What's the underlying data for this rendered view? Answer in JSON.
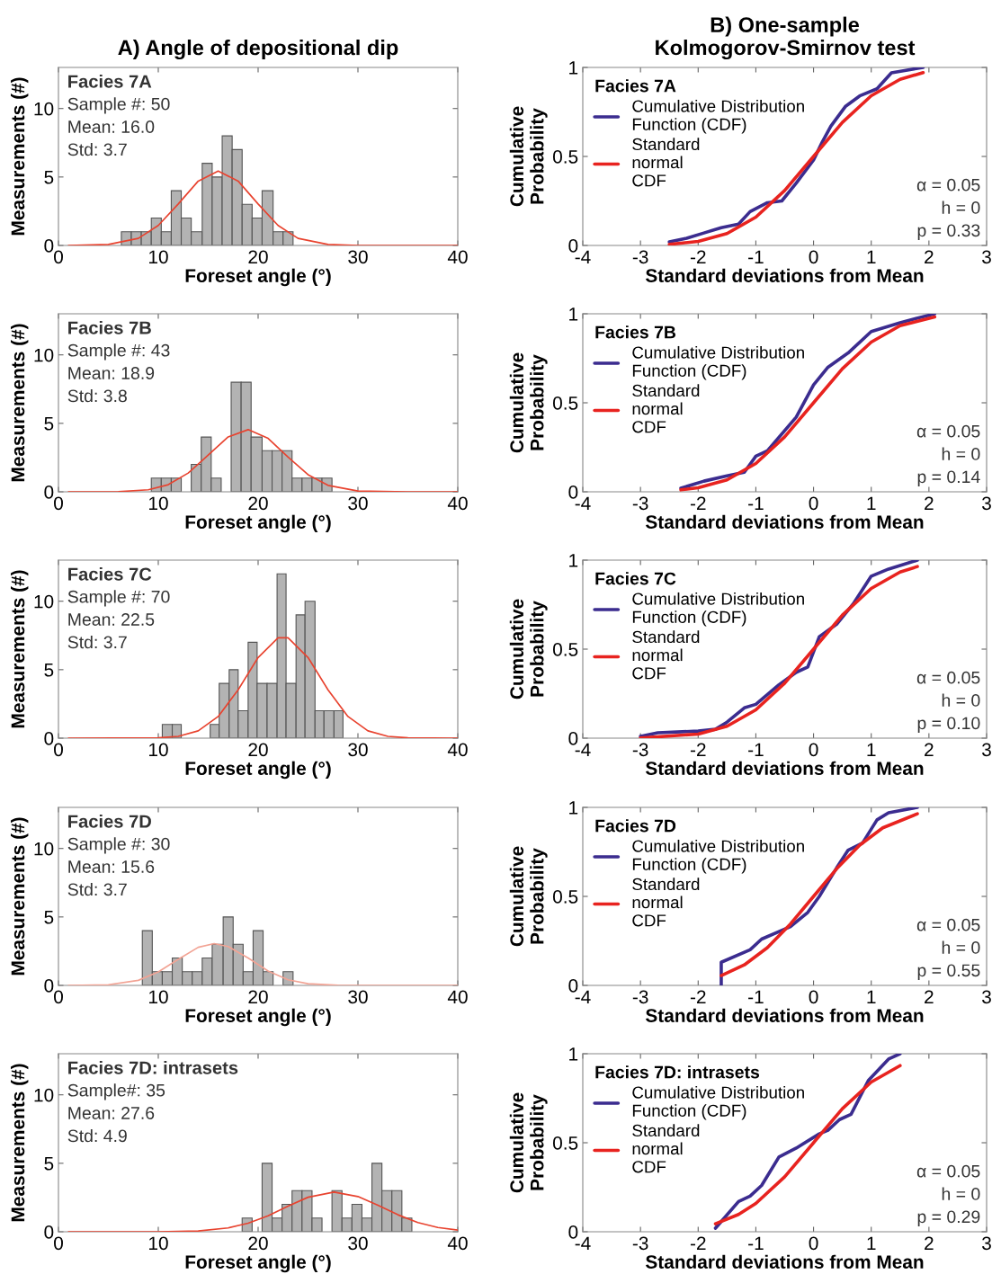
{
  "chart_data": [
    {
      "type": "histogram",
      "title": "A) Angle of depositional dip",
      "xlabel": "Foreset angle (°)",
      "ylabel": "Measurements (#)",
      "bins": [
        6.3,
        7.3,
        8.3,
        9.3,
        10.3,
        11.3,
        12.3,
        13.3,
        14.4,
        15.4,
        16.4,
        17.4,
        18.4,
        19.4,
        20.4,
        21.5,
        22.5,
        23.5
      ],
      "values": [
        1,
        1,
        1,
        2,
        1,
        4,
        2,
        1,
        6,
        5,
        8,
        7,
        3,
        2,
        4,
        1,
        1
      ],
      "color": "#b3b3b3",
      "series": [
        {
          "type": "line",
          "color": "#e8432f",
          "x": [
            1,
            5,
            8,
            10,
            12,
            14,
            16,
            18,
            20,
            22,
            24,
            27,
            30,
            35,
            40
          ],
          "values": [
            0,
            0.07,
            0.52,
            1.46,
            3.03,
            4.7,
            5.44,
            4.7,
            3.03,
            1.46,
            0.52,
            0.07,
            0,
            0,
            0
          ]
        }
      ],
      "xlim": [
        0,
        40
      ],
      "xticks": [
        0,
        10,
        20,
        30,
        40
      ],
      "ylim": [
        0,
        13
      ],
      "yticks": [
        0,
        5,
        10
      ],
      "grid": false,
      "annotations": [
        "Facies 7A",
        "Sample #: 50",
        "Mean: 16.0",
        "Std: 3.7"
      ]
    },
    {
      "type": "line",
      "title": "B) One-sample\nKolmogorov-Smirnov test",
      "xlabel": "Standard deviations from Mean",
      "ylabel": "Cumulative\nProbability",
      "legend_title": "Facies 7A",
      "legend": "top left",
      "series": [
        {
          "name": "Cumulative Distribution\nFunction (CDF)",
          "color": "#3b2c8f",
          "x": [
            -2.5,
            -2.2,
            -1.9,
            -1.6,
            -1.3,
            -1.1,
            -0.8,
            -0.55,
            -0.3,
            0,
            0.15,
            0.3,
            0.55,
            0.8,
            1.1,
            1.35,
            1.9
          ],
          "values": [
            0.02,
            0.04,
            0.07,
            0.1,
            0.12,
            0.19,
            0.24,
            0.25,
            0.35,
            0.48,
            0.58,
            0.67,
            0.78,
            0.84,
            0.88,
            0.97,
            1.0
          ]
        },
        {
          "name": "Standard\nnormal\nCDF",
          "color": "#e8231f",
          "x": [
            -2.5,
            -2,
            -1.5,
            -1,
            -0.5,
            0,
            0.5,
            1,
            1.5,
            1.9
          ],
          "values": [
            0.006,
            0.023,
            0.067,
            0.159,
            0.309,
            0.5,
            0.691,
            0.841,
            0.933,
            0.971
          ]
        }
      ],
      "xlim": [
        -4,
        3
      ],
      "xticks": [
        -4,
        -3,
        -2,
        -1,
        0,
        1,
        2,
        3
      ],
      "ylim": [
        0,
        1
      ],
      "yticks": [
        0,
        0.5,
        1
      ],
      "grid": false,
      "annotations": [
        "α = 0.05",
        "h = 0",
        "p = 0.33"
      ]
    },
    {
      "type": "histogram",
      "xlabel": "Foreset angle (°)",
      "ylabel": "Measurements (#)",
      "bins": [
        9.3,
        10.3,
        11.3,
        12.3,
        13.3,
        14.3,
        15.3,
        16.3,
        17.3,
        18.3,
        19.3,
        20.4,
        21.4,
        22.4,
        23.4,
        24.4,
        25.4,
        26.4,
        27.4
      ],
      "values": [
        1,
        1,
        1,
        0,
        2,
        4,
        1,
        0,
        8,
        8,
        4,
        3,
        3,
        3,
        1,
        1,
        1,
        1
      ],
      "color": "#b3b3b3",
      "series": [
        {
          "type": "line",
          "color": "#e8432f",
          "x": [
            1,
            6,
            9,
            11,
            13,
            15,
            17,
            19,
            21,
            23,
            25,
            27,
            30,
            35,
            40
          ],
          "values": [
            0,
            0.01,
            0.15,
            0.52,
            1.37,
            2.68,
            4.01,
            4.54,
            3.9,
            2.53,
            1.25,
            0.47,
            0.06,
            0,
            0
          ]
        }
      ],
      "xlim": [
        0,
        40
      ],
      "xticks": [
        0,
        10,
        20,
        30,
        40
      ],
      "ylim": [
        0,
        13
      ],
      "yticks": [
        0,
        5,
        10
      ],
      "grid": false,
      "annotations": [
        "Facies 7B",
        "Sample #: 43",
        "Mean: 18.9",
        "Std: 3.8"
      ]
    },
    {
      "type": "line",
      "xlabel": "Standard deviations from Mean",
      "ylabel": "Cumulative\nProbability",
      "legend_title": "Facies 7B",
      "legend": "top left",
      "series": [
        {
          "name": "Cumulative Distribution\nFunction (CDF)",
          "color": "#3b2c8f",
          "x": [
            -2.3,
            -1.9,
            -1.5,
            -1.2,
            -1.0,
            -0.8,
            -0.3,
            0,
            0.25,
            0.6,
            1.0,
            1.5,
            2.1
          ],
          "values": [
            0.02,
            0.06,
            0.09,
            0.11,
            0.2,
            0.23,
            0.42,
            0.6,
            0.7,
            0.78,
            0.9,
            0.95,
            1.0
          ]
        },
        {
          "name": "Standard\nnormal\nCDF",
          "color": "#e8231f",
          "x": [
            -2.3,
            -2,
            -1.5,
            -1,
            -0.5,
            0,
            0.5,
            1,
            1.5,
            2.1
          ],
          "values": [
            0.011,
            0.023,
            0.067,
            0.159,
            0.309,
            0.5,
            0.691,
            0.841,
            0.933,
            0.982
          ]
        }
      ],
      "xlim": [
        -4,
        3
      ],
      "xticks": [
        -4,
        -3,
        -2,
        -1,
        0,
        1,
        2,
        3
      ],
      "ylim": [
        0,
        1
      ],
      "yticks": [
        0,
        0.5,
        1
      ],
      "grid": false,
      "annotations": [
        "α = 0.05",
        "h = 0",
        "p = 0.14"
      ]
    },
    {
      "type": "histogram",
      "xlabel": "Foreset angle (°)",
      "ylabel": "Measurements (#)",
      "bins": [
        10.4,
        11.4,
        12.3,
        15.2,
        16.1,
        17.1,
        18.0,
        19.0,
        19.9,
        20.9,
        21.9,
        22.8,
        23.8,
        24.7,
        25.7,
        26.6,
        27.6,
        28.5
      ],
      "values": [
        1,
        1,
        0,
        1,
        4,
        5,
        2,
        7,
        4,
        4,
        12,
        4,
        9,
        10,
        2,
        2,
        2
      ],
      "color": "#b3b3b3",
      "series": [
        {
          "type": "line",
          "color": "#e8432f",
          "x": [
            1,
            10,
            12,
            14,
            16,
            18,
            20,
            22,
            23,
            25,
            27,
            29,
            31,
            33,
            35,
            40
          ],
          "values": [
            0,
            0.02,
            0.13,
            0.53,
            1.58,
            3.53,
            5.89,
            7.33,
            7.33,
            5.89,
            3.53,
            1.58,
            0.53,
            0.13,
            0.02,
            0
          ]
        }
      ],
      "xlim": [
        0,
        40
      ],
      "xticks": [
        0,
        10,
        20,
        30,
        40
      ],
      "ylim": [
        0,
        13
      ],
      "yticks": [
        0,
        5,
        10
      ],
      "grid": false,
      "annotations": [
        "Facies 7C",
        "Sample #: 70",
        "Mean: 22.5",
        "Std: 3.7"
      ]
    },
    {
      "type": "line",
      "xlabel": "Standard deviations from Mean",
      "ylabel": "Cumulative\nProbability",
      "legend_title": "Facies 7C",
      "legend": "top left",
      "series": [
        {
          "name": "Cumulative Distribution\nFunction (CDF)",
          "color": "#3b2c8f",
          "x": [
            -3.0,
            -2.7,
            -2.0,
            -1.7,
            -1.5,
            -1.2,
            -1.0,
            -0.6,
            -0.3,
            -0.1,
            0.1,
            0.4,
            0.7,
            1.0,
            1.3,
            1.8
          ],
          "values": [
            0.01,
            0.03,
            0.04,
            0.05,
            0.09,
            0.17,
            0.19,
            0.3,
            0.37,
            0.4,
            0.57,
            0.64,
            0.76,
            0.91,
            0.95,
            1.0
          ]
        },
        {
          "name": "Standard\nnormal\nCDF",
          "color": "#e8231f",
          "x": [
            -3.0,
            -2,
            -1.5,
            -1,
            -0.5,
            0,
            0.5,
            1,
            1.5,
            1.8
          ],
          "values": [
            0.001,
            0.023,
            0.067,
            0.159,
            0.309,
            0.5,
            0.691,
            0.841,
            0.933,
            0.964
          ]
        }
      ],
      "xlim": [
        -4,
        3
      ],
      "xticks": [
        -4,
        -3,
        -2,
        -1,
        0,
        1,
        2,
        3
      ],
      "ylim": [
        0,
        1
      ],
      "yticks": [
        0,
        0.5,
        1
      ],
      "grid": false,
      "annotations": [
        "α = 0.05",
        "h = 0",
        "p = 0.10"
      ]
    },
    {
      "type": "histogram",
      "xlabel": "Foreset angle (°)",
      "ylabel": "Measurements (#)",
      "bins": [
        8.4,
        9.4,
        10.4,
        11.4,
        12.4,
        13.4,
        14.4,
        15.4,
        16.5,
        17.5,
        18.5,
        19.5,
        20.5,
        21.5,
        22.5,
        23.5
      ],
      "values": [
        4,
        1,
        1,
        2,
        1,
        1,
        2,
        3,
        5,
        3,
        1,
        4,
        1,
        0,
        1
      ],
      "color": "#b3b3b3",
      "series": [
        {
          "type": "line",
          "color": "#f2a394",
          "x": [
            1,
            5,
            8,
            10,
            12,
            14,
            15.6,
            17,
            19,
            21,
            23,
            25,
            28,
            32,
            40
          ],
          "values": [
            0,
            0.05,
            0.37,
            0.98,
            1.9,
            2.78,
            3.05,
            2.84,
            2.0,
            1.05,
            0.41,
            0.12,
            0.01,
            0,
            0
          ]
        }
      ],
      "xlim": [
        0,
        40
      ],
      "xticks": [
        0,
        10,
        20,
        30,
        40
      ],
      "ylim": [
        0,
        13
      ],
      "yticks": [
        0,
        5,
        10
      ],
      "grid": false,
      "annotations": [
        "Facies 7D",
        "Sample #: 30",
        "Mean: 15.6",
        "Std: 3.7"
      ]
    },
    {
      "type": "line",
      "xlabel": "Standard deviations from Mean",
      "ylabel": "Cumulative\nProbability",
      "legend_title": "Facies 7D",
      "legend": "top left",
      "series": [
        {
          "name": "Cumulative Distribution\nFunction (CDF)",
          "color": "#3b2c8f",
          "x": [
            -1.6,
            -1.6,
            -1.1,
            -0.9,
            -0.4,
            -0.1,
            0.1,
            0.4,
            0.6,
            0.85,
            1.1,
            1.3,
            1.8
          ],
          "values": [
            0.0,
            0.13,
            0.2,
            0.26,
            0.33,
            0.41,
            0.5,
            0.66,
            0.76,
            0.8,
            0.93,
            0.97,
            1.0
          ]
        },
        {
          "name": "Standard\nnormal\nCDF",
          "color": "#e8231f",
          "x": [
            -1.6,
            -1.2,
            -0.8,
            -0.4,
            0,
            0.4,
            0.8,
            1.2,
            1.8
          ],
          "values": [
            0.055,
            0.115,
            0.212,
            0.345,
            0.5,
            0.655,
            0.788,
            0.885,
            0.964
          ]
        }
      ],
      "xlim": [
        -4,
        3
      ],
      "xticks": [
        -4,
        -3,
        -2,
        -1,
        0,
        1,
        2,
        3
      ],
      "ylim": [
        0,
        1
      ],
      "yticks": [
        0,
        0.5,
        1
      ],
      "grid": false,
      "annotations": [
        "α = 0.05",
        "h = 0",
        "p = 0.55"
      ]
    },
    {
      "type": "histogram",
      "xlabel": "Foreset angle (°)",
      "ylabel": "Measurements (#)",
      "bins": [
        18.4,
        19.4,
        20.4,
        21.4,
        22.4,
        23.4,
        24.4,
        25.4,
        26.4,
        27.4,
        28.4,
        29.4,
        30.4,
        31.4,
        32.4,
        33.4,
        34.4,
        35.4
      ],
      "values": [
        1,
        0,
        5,
        1,
        2,
        3,
        3,
        1,
        0,
        3,
        1,
        2,
        1,
        5,
        3,
        3,
        1
      ],
      "color": "#b3b3b3",
      "series": [
        {
          "type": "line",
          "color": "#e8432f",
          "x": [
            1,
            10,
            14,
            17,
            19,
            21,
            23,
            25,
            27.6,
            30,
            32,
            34,
            36,
            38,
            40
          ],
          "values": [
            0,
            0,
            0.06,
            0.28,
            0.62,
            1.17,
            1.87,
            2.52,
            2.9,
            2.57,
            1.94,
            1.24,
            0.67,
            0.31,
            0.12
          ]
        }
      ],
      "xlim": [
        0,
        40
      ],
      "xticks": [
        0,
        10,
        20,
        30,
        40
      ],
      "ylim": [
        0,
        13
      ],
      "yticks": [
        0,
        5,
        10
      ],
      "grid": false,
      "annotations": [
        "Facies 7D: intrasets",
        "Sample#: 35",
        "Mean: 27.6",
        "Std: 4.9"
      ]
    },
    {
      "type": "line",
      "xlabel": "Standard deviations from Mean",
      "ylabel": "Cumulative\nProbability",
      "legend_title": "Facies 7D: intrasets",
      "legend": "top left",
      "series": [
        {
          "name": "Cumulative Distribution\nFunction (CDF)",
          "color": "#3b2c8f",
          "x": [
            -1.7,
            -1.3,
            -1.1,
            -0.9,
            -0.6,
            -0.3,
            0.1,
            0.25,
            0.45,
            0.65,
            0.95,
            1.3,
            1.5
          ],
          "values": [
            0.02,
            0.17,
            0.2,
            0.26,
            0.42,
            0.47,
            0.55,
            0.57,
            0.63,
            0.66,
            0.85,
            0.97,
            1.0
          ]
        },
        {
          "name": "Standard\nnormal\nCDF",
          "color": "#e8231f",
          "x": [
            -1.7,
            -1.3,
            -1,
            -0.5,
            0,
            0.5,
            1,
            1.5
          ],
          "values": [
            0.045,
            0.097,
            0.159,
            0.309,
            0.5,
            0.691,
            0.841,
            0.933
          ]
        }
      ],
      "xlim": [
        -4,
        3
      ],
      "xticks": [
        -4,
        -3,
        -2,
        -1,
        0,
        1,
        2,
        3
      ],
      "ylim": [
        0,
        1
      ],
      "yticks": [
        0,
        0.5,
        1
      ],
      "grid": false,
      "annotations": [
        "α = 0.05",
        "h = 0",
        "p = 0.29"
      ]
    }
  ]
}
